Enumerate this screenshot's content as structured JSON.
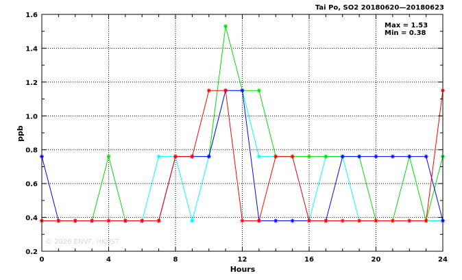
{
  "chart_data": {
    "type": "line",
    "title": "Tai Po, SO2 20180620—20180623",
    "xlabel": "Hours",
    "ylabel": "ppb",
    "xlim": [
      0,
      24
    ],
    "ylim": [
      0.2,
      1.6
    ],
    "xticks": [
      0,
      4,
      8,
      12,
      16,
      20,
      24
    ],
    "yticks": [
      0.2,
      0.4,
      0.6,
      0.8,
      1.0,
      1.2,
      1.4,
      1.6
    ],
    "ytick_labels": [
      "0.2",
      "0.4",
      "0.6",
      "0.8",
      "1.0",
      "1.2",
      "1.4",
      "1.6"
    ],
    "grid": true,
    "stats": {
      "max_label": "Max = 1.53",
      "min_label": "Min = 0.38"
    },
    "watermark": "© 2026  ENVF, HKUST",
    "x": [
      0,
      1,
      2,
      3,
      4,
      5,
      6,
      7,
      8,
      9,
      10,
      11,
      12,
      13,
      14,
      15,
      16,
      17,
      18,
      19,
      20,
      21,
      22,
      23,
      24
    ],
    "series": [
      {
        "color": "#00ffff",
        "values": [
          0.38,
          0.38,
          0.38,
          0.38,
          0.38,
          0.38,
          0.38,
          0.76,
          0.76,
          0.38,
          0.76,
          1.15,
          1.15,
          0.76,
          0.76,
          0.76,
          0.38,
          0.76,
          0.76,
          0.38,
          0.38,
          0.38,
          0.38,
          0.38,
          0.38
        ]
      },
      {
        "color": "#00dd00",
        "values": [
          0.38,
          0.38,
          0.38,
          0.38,
          0.76,
          0.38,
          0.38,
          0.38,
          0.76,
          0.76,
          0.76,
          1.53,
          1.15,
          1.15,
          0.76,
          0.76,
          0.76,
          0.76,
          0.76,
          0.76,
          0.38,
          0.38,
          0.76,
          0.38,
          0.76
        ]
      },
      {
        "color": "#0000ff",
        "values": [
          0.76,
          0.38,
          0.38,
          0.38,
          0.38,
          0.38,
          0.38,
          0.38,
          0.76,
          0.76,
          0.76,
          1.15,
          1.15,
          0.38,
          0.38,
          0.38,
          0.38,
          0.38,
          0.76,
          0.76,
          0.76,
          0.76,
          0.76,
          0.76,
          0.38
        ]
      },
      {
        "color": "#ff0000",
        "values": [
          0.38,
          0.38,
          0.38,
          0.38,
          0.38,
          0.38,
          0.38,
          0.38,
          0.76,
          0.76,
          1.15,
          1.15,
          0.38,
          0.38,
          0.76,
          0.76,
          0.38,
          0.38,
          0.38,
          0.38,
          0.38,
          0.38,
          0.38,
          0.38,
          1.15
        ]
      }
    ]
  }
}
